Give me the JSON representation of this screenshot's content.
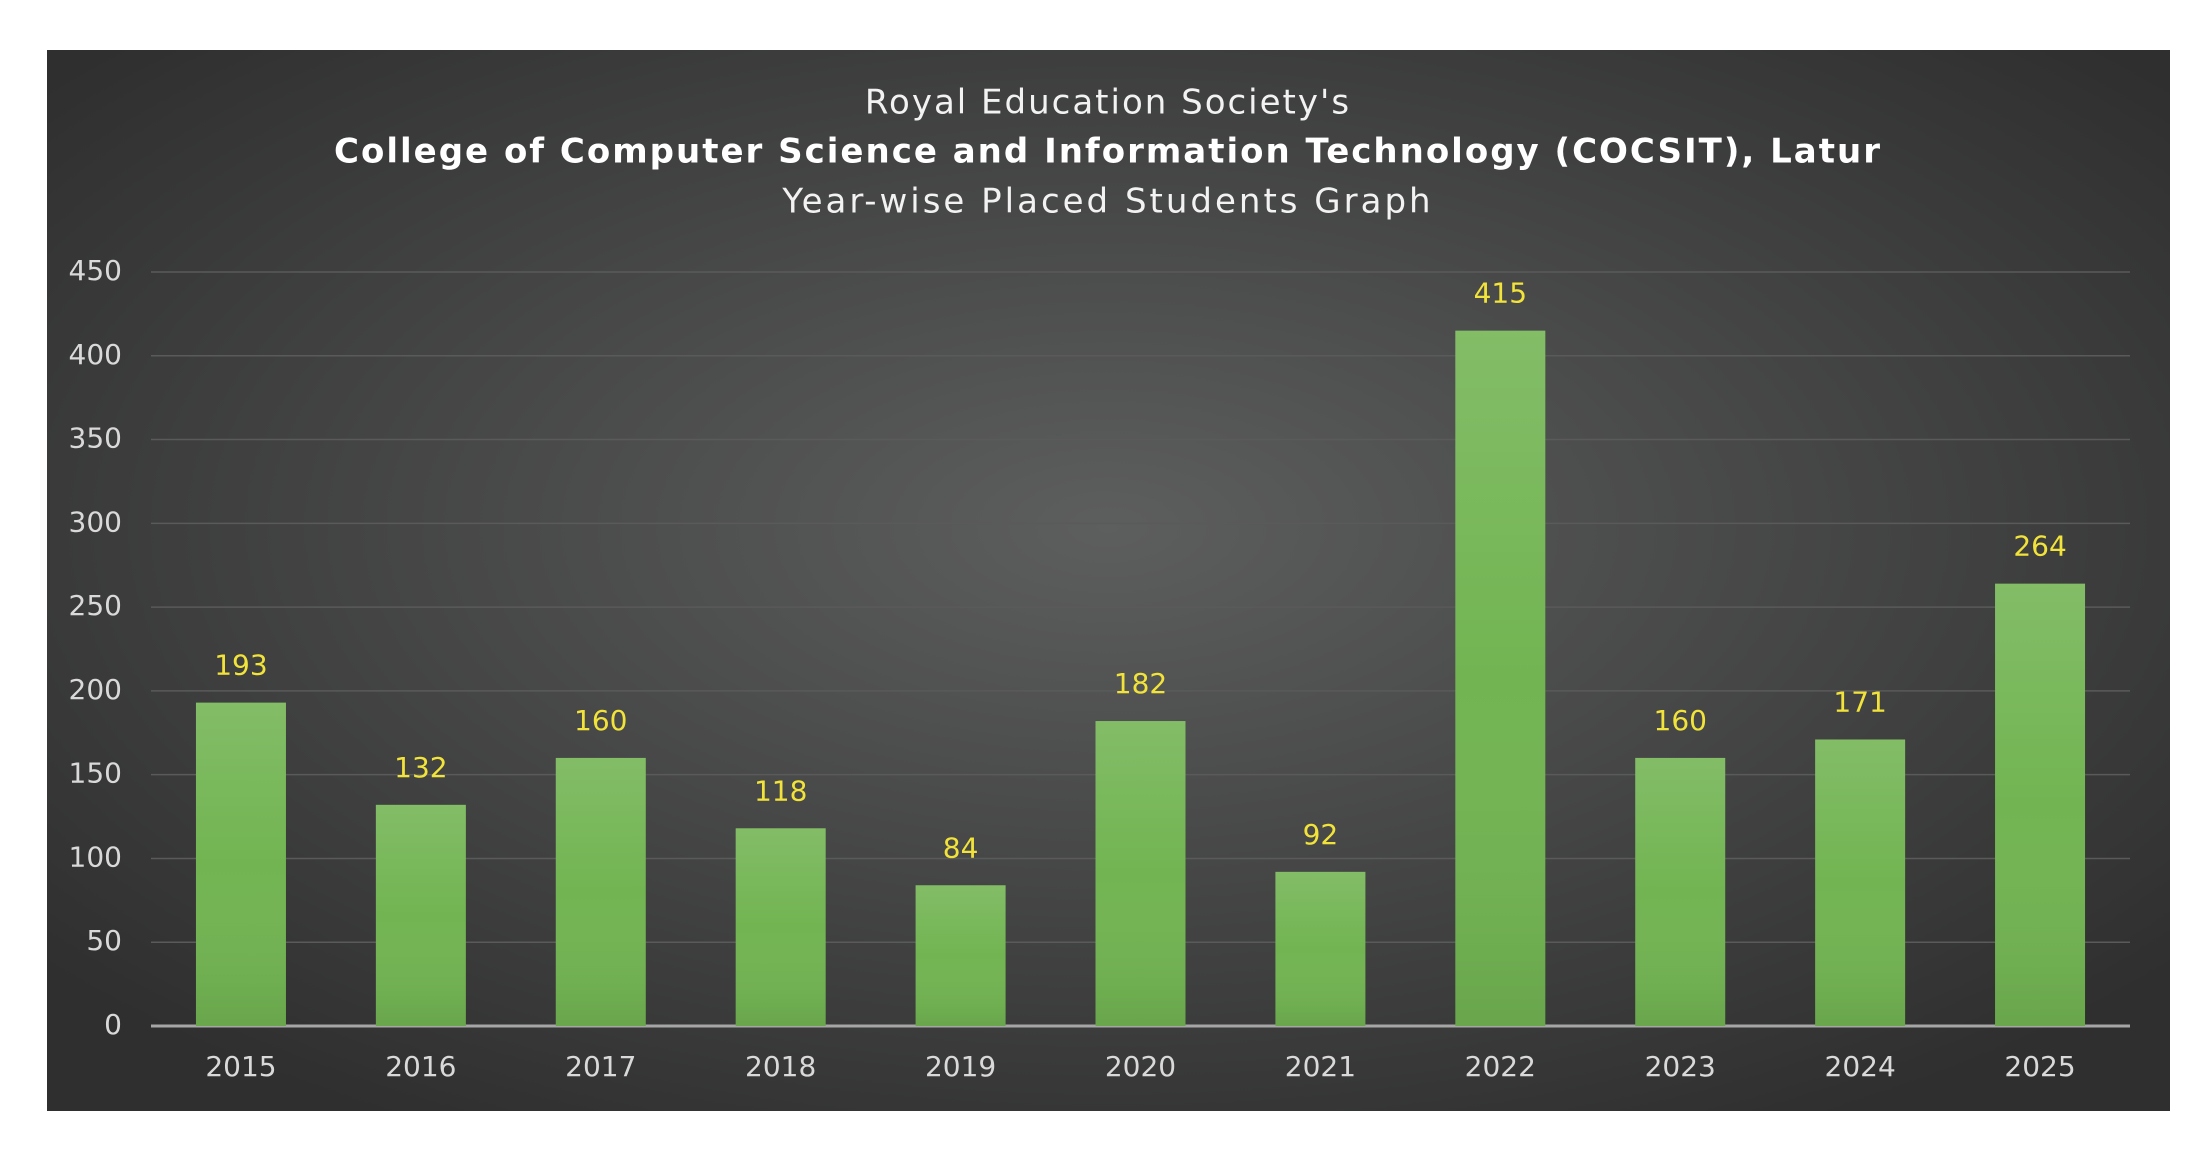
{
  "chart_data": {
    "type": "bar",
    "title_lines": [
      "Royal Education Society's",
      "College of Computer Science and Information Technology (COCSIT), Latur",
      "Year-wise Placed Students Graph"
    ],
    "categories": [
      "2015",
      "2016",
      "2017",
      "2018",
      "2019",
      "2020",
      "2021",
      "2022",
      "2023",
      "2024",
      "2025"
    ],
    "values": [
      193,
      132,
      160,
      118,
      84,
      182,
      92,
      415,
      160,
      171,
      264
    ],
    "color": "#72b452",
    "label_color": "#f2e33a",
    "ylim": [
      0,
      450
    ],
    "yticks": [
      0,
      50,
      100,
      150,
      200,
      250,
      300,
      350,
      400,
      450
    ],
    "grid": true
  }
}
